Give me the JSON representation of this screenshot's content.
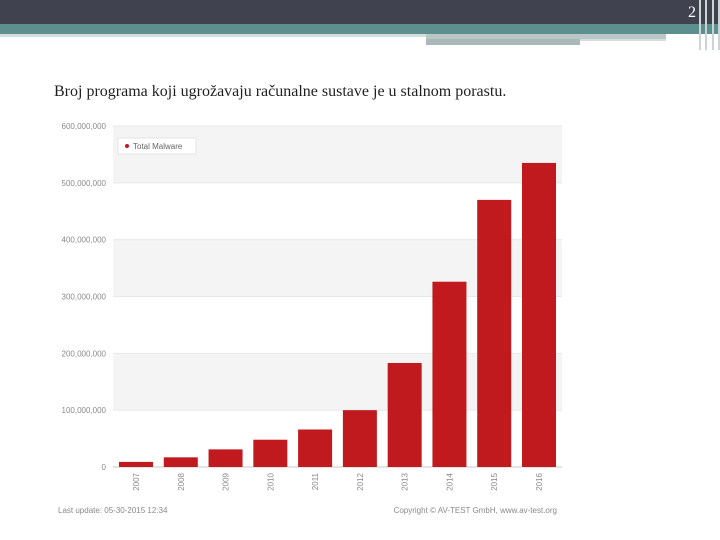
{
  "slide": {
    "page_number": "2",
    "caption": "Broj programa koji ugrožavaju računalne sustave je u stalnom porastu."
  },
  "chart_data": {
    "type": "bar",
    "series": [
      {
        "name": "Total Malware",
        "values": [
          9000000,
          17000000,
          31000000,
          48000000,
          66000000,
          100000000,
          183000000,
          326000000,
          470000000,
          535000000
        ]
      }
    ],
    "categories": [
      "2007",
      "2008",
      "2009",
      "2010",
      "2011",
      "2012",
      "2013",
      "2014",
      "2015",
      "2016"
    ],
    "yticks": [
      "0",
      "100,000,000",
      "200,000,000",
      "300,000,000",
      "400,000,000",
      "500,000,000",
      "600,000,000"
    ],
    "ylim": [
      0,
      600000000
    ],
    "legend": "Total Malware",
    "footer_left": "Last update: 05-30-2015 12:34",
    "footer_right": "Copyright © AV-TEST GmbH, www.av-test.org",
    "colors": {
      "bar": "#c0191e",
      "grid": "#e8e8e8",
      "band": "#f4f4f4",
      "text": "#8a8a8a"
    }
  }
}
